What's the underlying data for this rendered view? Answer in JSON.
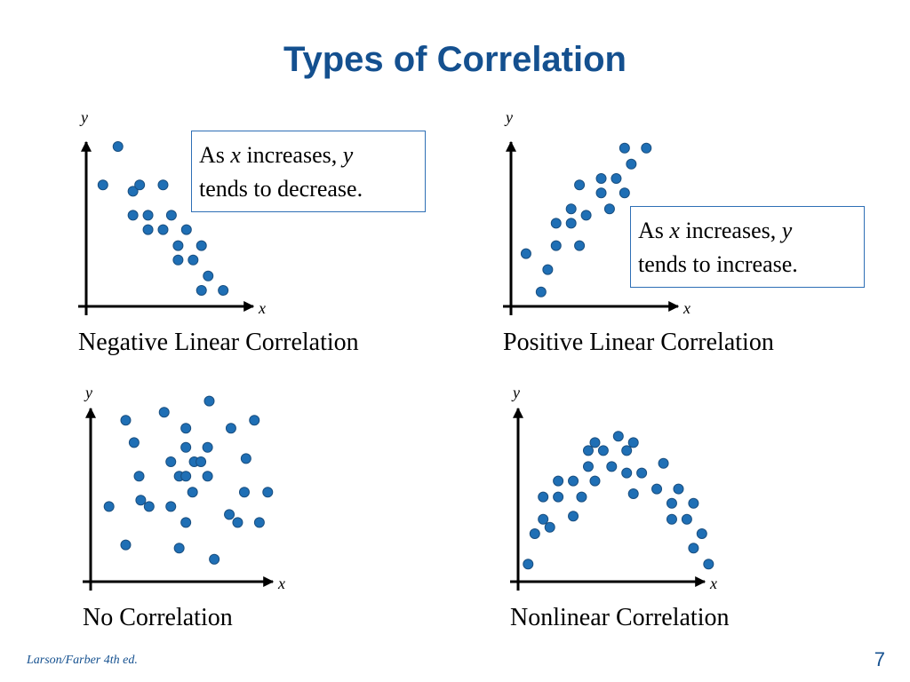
{
  "title": "Types of Correlation",
  "footer": "Larson/Farber 4th ed.",
  "page_number": "7",
  "chart_data": [
    {
      "type": "scatter",
      "title": "Negative Linear Correlation",
      "x_label": "x",
      "y_label": "y",
      "annotation": [
        "As",
        "x",
        "increases,",
        "y",
        "tends to decrease."
      ],
      "xlim": [
        0,
        12
      ],
      "ylim": [
        0,
        12
      ],
      "color": "#1f6fb5",
      "x": [
        1.9,
        1.0,
        2.8,
        3.2,
        4.6,
        2.8,
        3.7,
        5.1,
        3.7,
        4.6,
        6.0,
        5.5,
        6.9,
        5.5,
        6.4,
        7.3,
        6.9,
        8.2
      ],
      "y": [
        10.0,
        7.6,
        7.2,
        7.6,
        7.6,
        5.7,
        5.7,
        5.7,
        4.8,
        4.8,
        4.8,
        3.8,
        3.8,
        2.9,
        2.9,
        1.9,
        1.0,
        1.0
      ]
    },
    {
      "type": "scatter",
      "title": "Positive Linear Correlation",
      "x_label": "x",
      "y_label": "y",
      "annotation": [
        "As",
        "x",
        "increases,",
        "y",
        "tends to increase."
      ],
      "xlim": [
        0,
        12
      ],
      "ylim": [
        0,
        12
      ],
      "color": "#1f6fb5",
      "x": [
        6.8,
        8.1,
        7.2,
        4.1,
        5.4,
        6.3,
        5.4,
        6.8,
        3.6,
        5.9,
        2.7,
        3.6,
        4.5,
        2.7,
        4.1,
        0.9,
        2.2,
        1.8
      ],
      "y": [
        9.9,
        9.9,
        8.9,
        7.6,
        8.0,
        8.0,
        7.1,
        7.1,
        6.1,
        6.1,
        5.2,
        5.2,
        5.7,
        3.8,
        3.8,
        3.3,
        2.3,
        0.9
      ]
    },
    {
      "type": "scatter",
      "title": "No Correlation",
      "x_label": "x",
      "y_label": "y",
      "xlim": [
        0,
        12
      ],
      "ylim": [
        0,
        12
      ],
      "color": "#1f6fb5",
      "x": [
        2.1,
        4.4,
        7.1,
        5.7,
        8.4,
        9.8,
        2.6,
        5.7,
        7.0,
        4.8,
        6.2,
        6.6,
        9.3,
        2.9,
        5.3,
        5.7,
        7.0,
        6.1,
        9.2,
        10.6,
        1.1,
        3.0,
        3.5,
        4.8,
        5.7,
        8.3,
        8.8,
        10.1,
        2.1,
        5.3,
        7.4
      ],
      "y": [
        10.1,
        10.6,
        11.3,
        9.6,
        9.6,
        10.1,
        8.7,
        8.4,
        8.4,
        7.5,
        7.5,
        7.5,
        7.7,
        6.6,
        6.6,
        6.6,
        6.6,
        5.6,
        5.6,
        5.6,
        4.7,
        5.1,
        4.7,
        4.7,
        3.7,
        4.2,
        3.7,
        3.7,
        2.3,
        2.1,
        1.4
      ]
    },
    {
      "type": "scatter",
      "title": "Nonlinear Correlation",
      "x_label": "x",
      "y_label": "y",
      "xlim": [
        0,
        12
      ],
      "ylim": [
        0,
        12
      ],
      "color": "#1f6fb5",
      "x": [
        0.6,
        1.0,
        1.5,
        1.9,
        1.5,
        2.4,
        2.4,
        3.3,
        3.3,
        3.8,
        4.2,
        4.2,
        4.6,
        5.1,
        4.6,
        5.6,
        6.0,
        6.5,
        6.5,
        6.9,
        7.4,
        6.9,
        8.3,
        8.7,
        9.2,
        9.6,
        9.2,
        10.1,
        10.5,
        11.0,
        10.5,
        11.4
      ],
      "y": [
        1.1,
        3.0,
        3.9,
        3.4,
        5.3,
        5.3,
        6.3,
        6.3,
        4.1,
        5.3,
        8.2,
        7.2,
        8.7,
        8.2,
        6.3,
        7.2,
        9.1,
        8.2,
        6.8,
        8.7,
        6.8,
        5.5,
        5.8,
        7.4,
        4.9,
        5.8,
        3.9,
        3.9,
        4.9,
        3.0,
        2.1,
        1.1
      ]
    }
  ]
}
